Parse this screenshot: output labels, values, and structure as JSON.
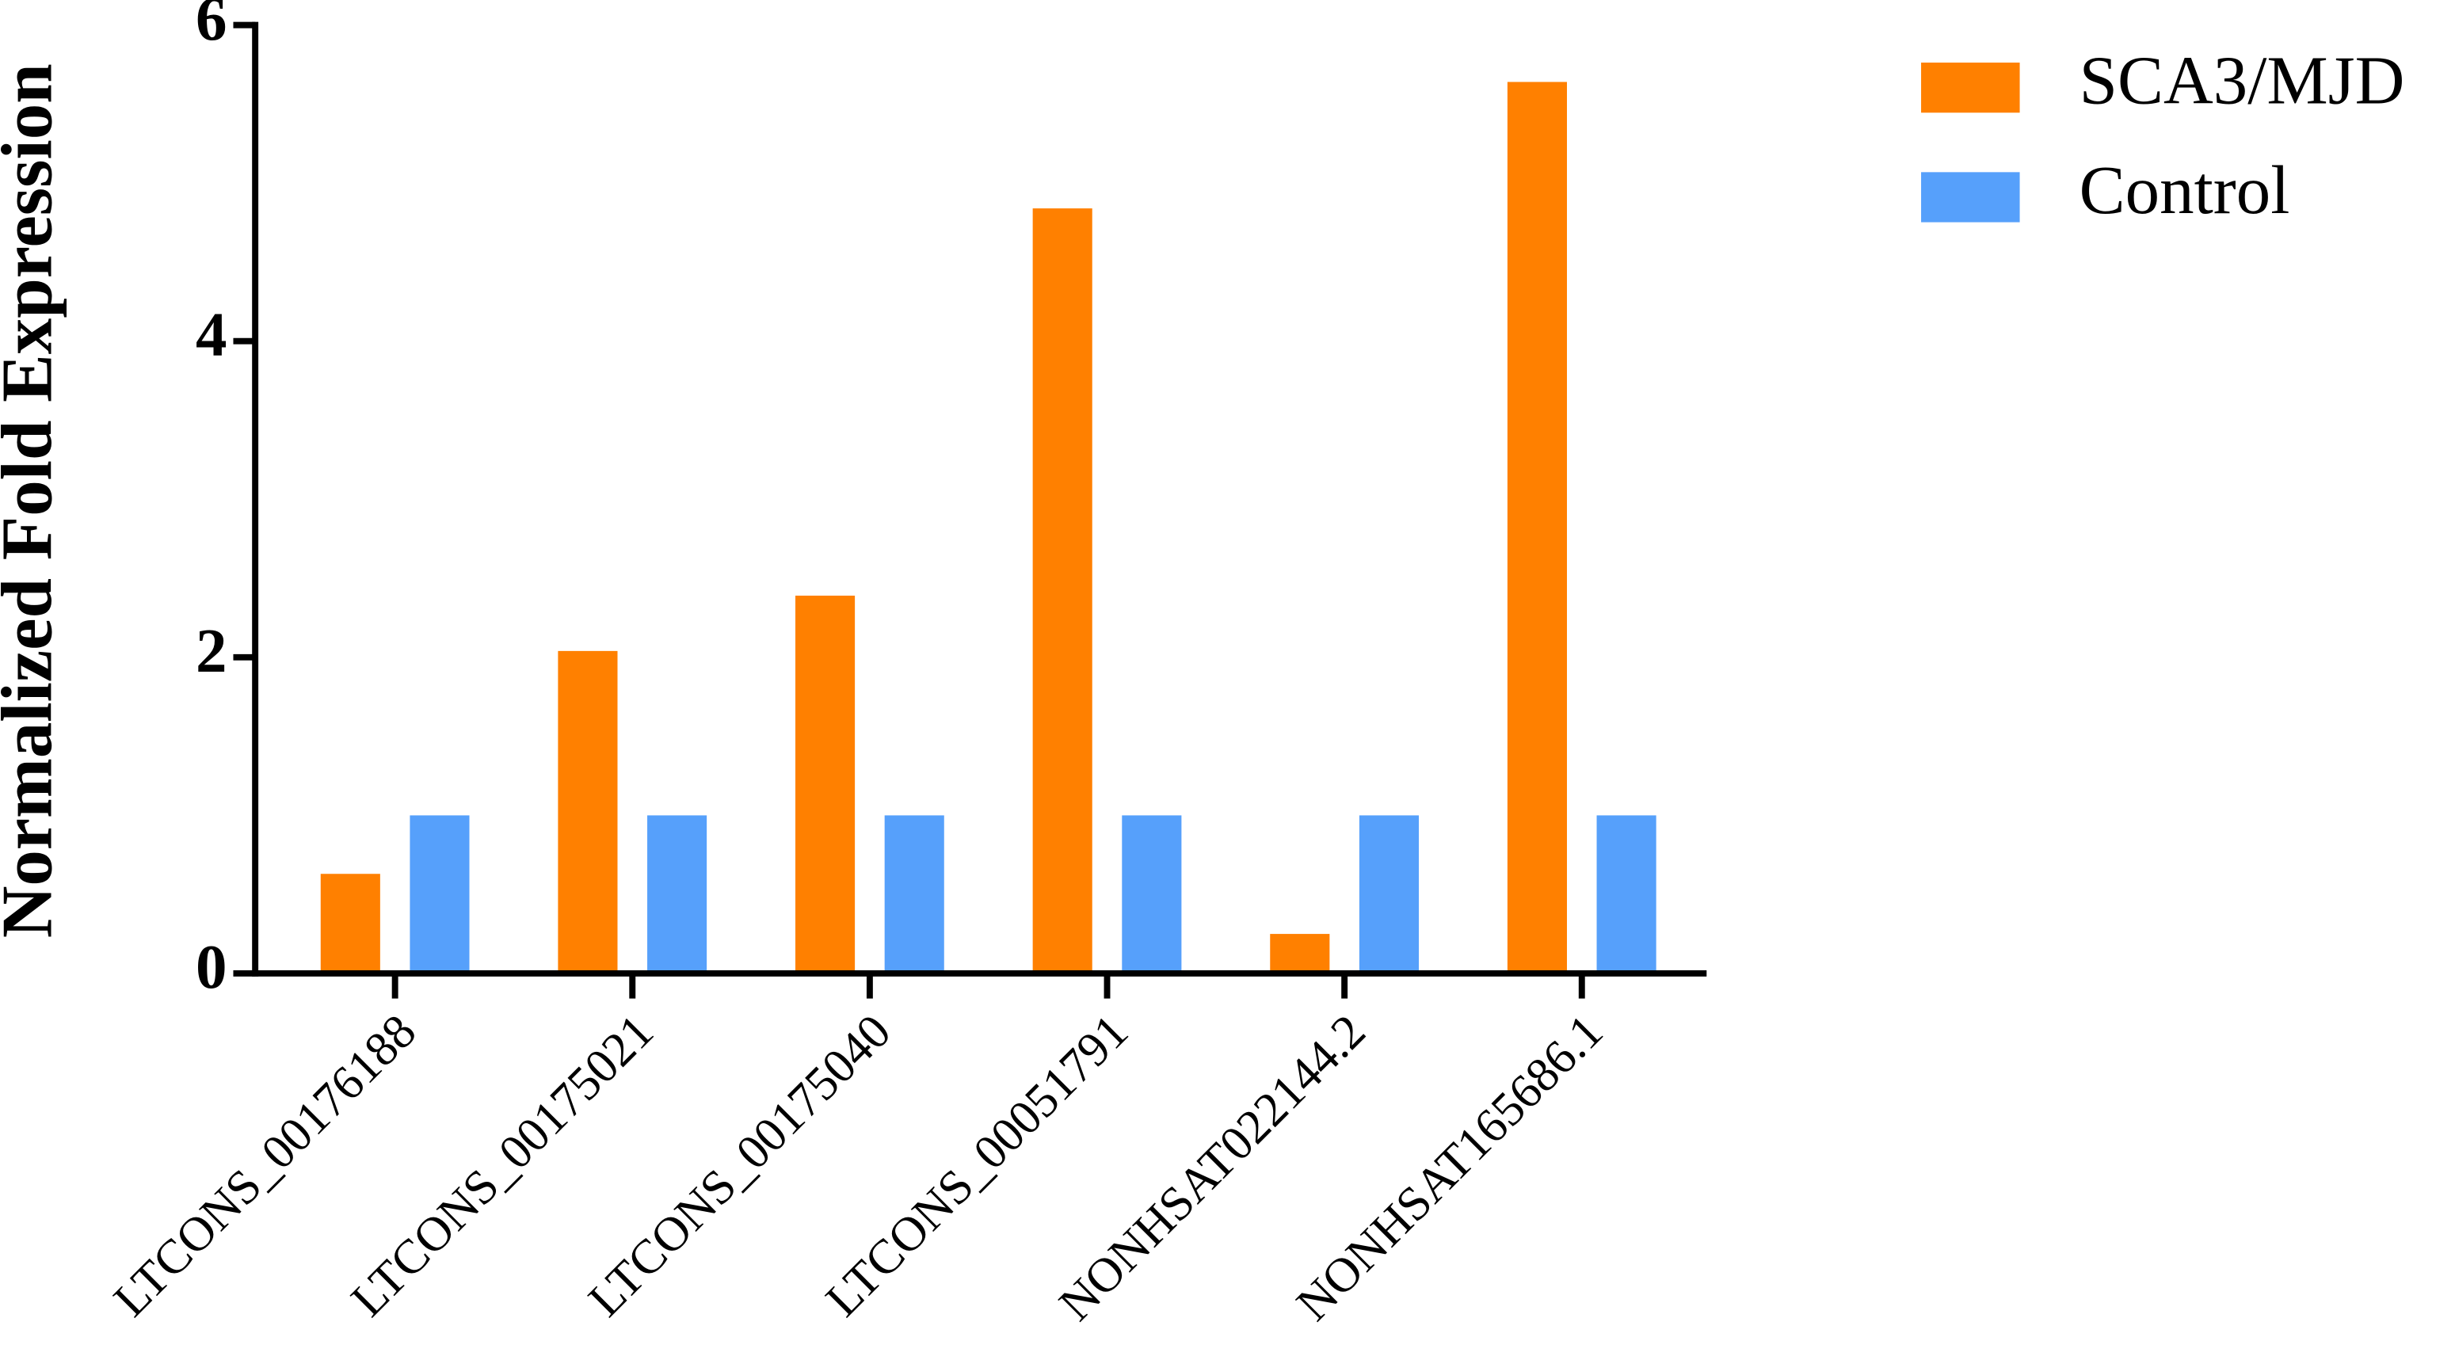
{
  "chart_data": {
    "type": "bar",
    "ylabel": "Normalized Fold Expression",
    "categories": [
      "LTCONS_00176188",
      "LTCONS_00175021",
      "LTCONS_00175040",
      "LTCONS_00051791",
      "NONHSAT022144.2",
      "NONHSAT165686.1"
    ],
    "series": [
      {
        "name": "SCA3/MJD",
        "color": "#ff8000",
        "values": [
          0.63,
          2.04,
          2.39,
          4.84,
          0.25,
          5.64
        ]
      },
      {
        "name": "Control",
        "color": "#56a0fb",
        "values": [
          1,
          1,
          1,
          1,
          1,
          1
        ]
      }
    ],
    "ylim": [
      0,
      6
    ],
    "yticks": [
      0,
      2,
      4,
      6
    ],
    "grid": false,
    "legend": "right"
  }
}
